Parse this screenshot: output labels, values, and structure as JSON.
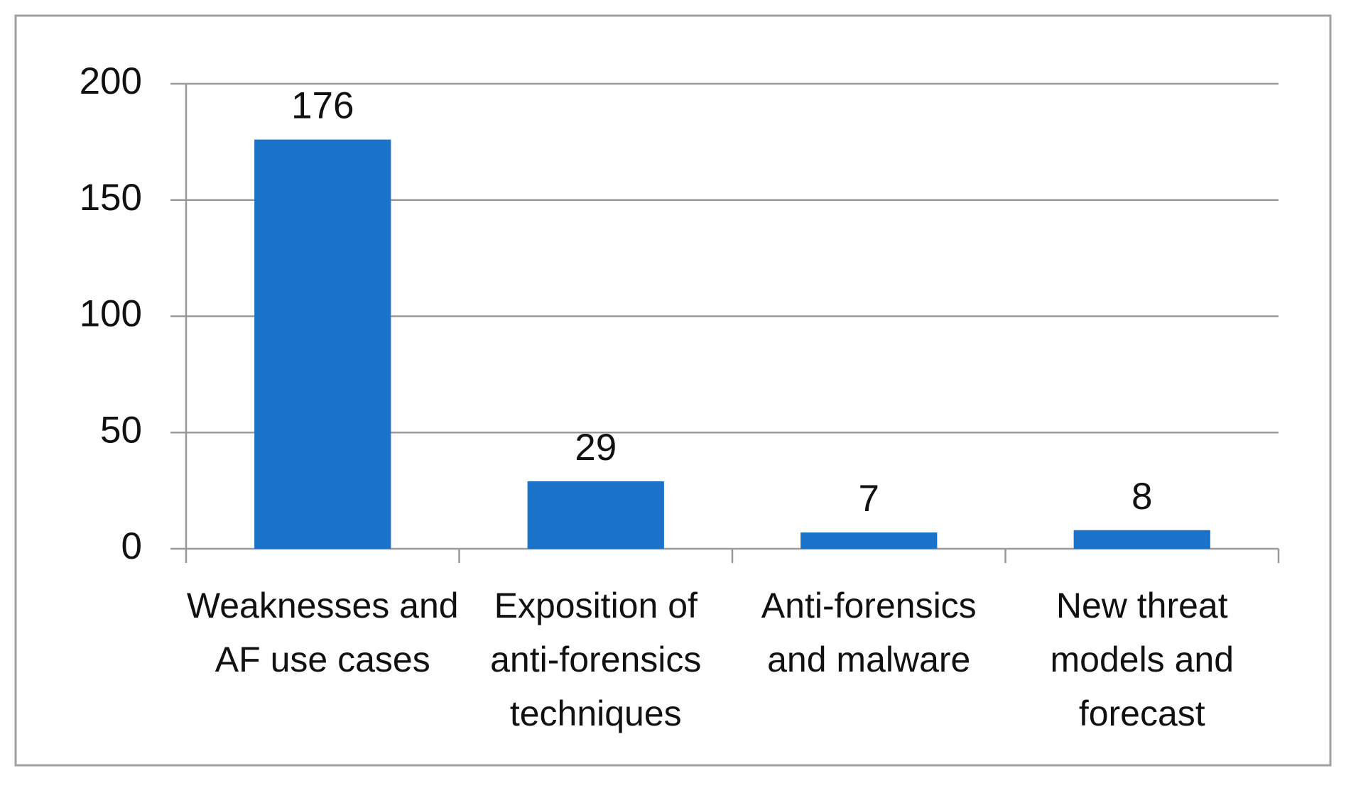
{
  "chart_data": {
    "type": "bar",
    "categories": [
      "Weaknesses and AF use cases",
      "Exposition of anti-forensics techniques",
      "Anti-forensics and malware",
      "New threat models and forecast"
    ],
    "values": [
      176,
      29,
      7,
      8
    ],
    "color": "#1a73c8",
    "ylim": [
      0,
      200
    ],
    "yticks": [
      0,
      50,
      100,
      150,
      200
    ],
    "grid": true
  }
}
